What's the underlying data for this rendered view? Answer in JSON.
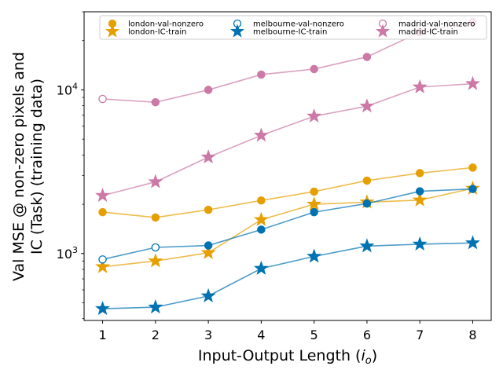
{
  "chart_data": {
    "type": "line",
    "title": "",
    "xlabel": "Input-Output Length (",
    "xlabel_var": "i",
    "xlabel_sub": "o",
    "xlabel_end": ")",
    "ylabel_line1": "Val MSE @ non-zero pixels and",
    "ylabel_line2": "IC (Task) (training data)",
    "x": [
      1,
      2,
      3,
      4,
      5,
      6,
      7,
      8
    ],
    "xticks": [
      "1",
      "2",
      "3",
      "4",
      "5",
      "6",
      "7",
      "8"
    ],
    "yscale": "log",
    "ylim": [
      390,
      30000
    ],
    "yticks": [
      {
        "value": 1000,
        "base": "10",
        "exp": "3"
      },
      {
        "value": 10000,
        "base": "10",
        "exp": "4"
      }
    ],
    "legend_position": "top",
    "series": [
      {
        "name": "london-val-nonzero",
        "color": "#E69F00",
        "marker": "circle",
        "values": [
          1790,
          1660,
          1850,
          2110,
          2390,
          2790,
          3100,
          3350
        ],
        "hollow": [
          false,
          false,
          false,
          false,
          false,
          false,
          false,
          false
        ]
      },
      {
        "name": "london-IC-train",
        "color": "#E69F00",
        "marker": "star",
        "values": [
          830,
          900,
          1010,
          1610,
          2000,
          2060,
          2120,
          2500
        ],
        "hollow": [
          false,
          false,
          false,
          false,
          false,
          false,
          false,
          false
        ]
      },
      {
        "name": "melbourne-val-nonzero",
        "color": "#0072B2",
        "marker": "circle",
        "values": [
          920,
          1090,
          1120,
          1400,
          1790,
          2020,
          2400,
          2480
        ],
        "hollow": [
          true,
          true,
          false,
          false,
          false,
          false,
          false,
          false
        ]
      },
      {
        "name": "melbourne-IC-train",
        "color": "#0072B2",
        "marker": "star",
        "values": [
          460,
          470,
          550,
          810,
          960,
          1110,
          1140,
          1160
        ],
        "hollow": [
          false,
          false,
          false,
          false,
          false,
          false,
          false,
          false
        ]
      },
      {
        "name": "madrid-val-nonzero",
        "color": "#CC79A7",
        "marker": "circle",
        "values": [
          8800,
          8400,
          10000,
          12400,
          13400,
          15900,
          22500,
          26000
        ],
        "hollow": [
          true,
          false,
          false,
          false,
          false,
          false,
          false,
          false
        ]
      },
      {
        "name": "madrid-IC-train",
        "color": "#CC79A7",
        "marker": "star",
        "values": [
          2260,
          2740,
          3880,
          5270,
          6900,
          7950,
          10400,
          10900
        ],
        "hollow": [
          false,
          false,
          false,
          false,
          false,
          false,
          false,
          false
        ]
      }
    ]
  }
}
